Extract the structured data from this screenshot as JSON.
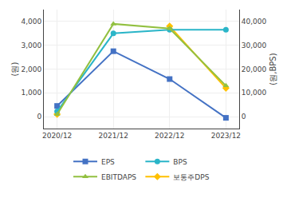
{
  "chart_data": {
    "type": "line",
    "categories": [
      "2020/12",
      "2021/12",
      "2022/12",
      "2023/12"
    ],
    "series": [
      {
        "name": "EPS",
        "color": "#4472c4",
        "marker": "square",
        "values": [
          450,
          2750,
          1580,
          -50
        ]
      },
      {
        "name": "BPS",
        "color": "#2ab5c8",
        "marker": "circle",
        "axis": "y2",
        "values": [
          2200,
          35000,
          36500,
          36500
        ]
      },
      {
        "name": "EBITDAPS",
        "color": "#92c040",
        "marker": "triangle-up",
        "axis": "y2",
        "values": [
          950,
          39000,
          37000,
          13000
        ]
      },
      {
        "name": "보통주DPS",
        "color": "#ffc000",
        "marker": "diamond",
        "values": [
          100,
          null,
          3800,
          1200
        ]
      }
    ],
    "y_label": "(원)",
    "y2_label": "(원,BPS)",
    "ylim": [
      -500,
      4500
    ],
    "yticks": [
      0,
      {
        "value": 1000,
        "label": "1,000"
      },
      {
        "value": 2000,
        "label": "2,000"
      },
      {
        "value": 3000,
        "label": "3,000"
      },
      {
        "value": 4000,
        "label": "4,000"
      }
    ],
    "y2lim": [
      -5000,
      45000
    ],
    "y2ticks": [
      0,
      {
        "value": 10000,
        "label": "10,000"
      },
      {
        "value": 20000,
        "label": "20,000"
      },
      {
        "value": 30000,
        "label": "30,000"
      },
      {
        "value": 40000,
        "label": "40,000"
      }
    ],
    "grid": true,
    "legend": "bottom"
  }
}
